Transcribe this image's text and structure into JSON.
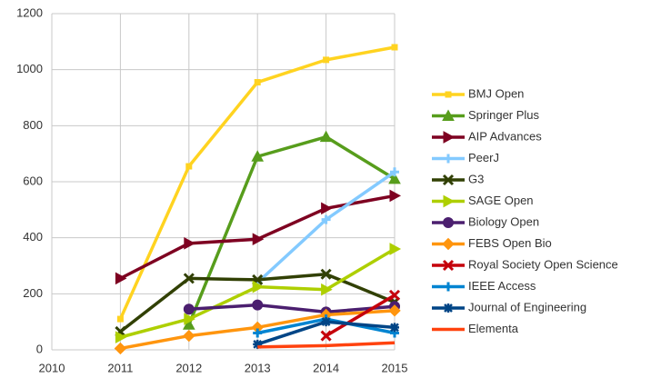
{
  "chart_data": {
    "type": "line",
    "x": [
      2010,
      2011,
      2012,
      2013,
      2014,
      2015
    ],
    "xlim": [
      2010,
      2015
    ],
    "xticks": [
      2010,
      2011,
      2012,
      2013,
      2014,
      2015
    ],
    "ylim": [
      0,
      1200
    ],
    "yticks": [
      0,
      200,
      400,
      600,
      800,
      1000,
      1200
    ],
    "grid": true,
    "legend": "right",
    "series": [
      {
        "name": "BMJ Open",
        "color": "#ffd320",
        "marker": "square",
        "values": [
          null,
          110,
          655,
          955,
          1035,
          1080
        ]
      },
      {
        "name": "Springer Plus",
        "color": "#579d1c",
        "marker": "triangle",
        "values": [
          null,
          null,
          90,
          690,
          760,
          610
        ]
      },
      {
        "name": "AIP Advances",
        "color": "#7e0021",
        "marker": "arrow",
        "values": [
          null,
          255,
          380,
          395,
          505,
          550
        ]
      },
      {
        "name": "PeerJ",
        "color": "#83caff",
        "marker": "plus",
        "values": [
          null,
          null,
          null,
          240,
          465,
          635
        ]
      },
      {
        "name": "G3",
        "color": "#314004",
        "marker": "x",
        "values": [
          null,
          65,
          255,
          250,
          270,
          170
        ]
      },
      {
        "name": "SAGE Open",
        "color": "#aecf00",
        "marker": "arrow",
        "values": [
          null,
          45,
          110,
          225,
          215,
          360
        ]
      },
      {
        "name": "Biology Open",
        "color": "#4b1f6f",
        "marker": "circle",
        "values": [
          null,
          null,
          145,
          160,
          135,
          155
        ]
      },
      {
        "name": "FEBS Open Bio",
        "color": "#ff950e",
        "marker": "diamond",
        "values": [
          null,
          5,
          50,
          80,
          125,
          140
        ]
      },
      {
        "name": "Royal Society Open Science",
        "color": "#c5000b",
        "marker": "x",
        "values": [
          null,
          null,
          null,
          null,
          50,
          195
        ]
      },
      {
        "name": "IEEE Access",
        "color": "#0084d1",
        "marker": "plus",
        "values": [
          null,
          null,
          null,
          60,
          110,
          60
        ]
      },
      {
        "name": "Journal of Engineering",
        "color": "#004586",
        "marker": "star",
        "values": [
          null,
          null,
          null,
          20,
          100,
          80
        ]
      },
      {
        "name": "Elementa",
        "color": "#ff420e",
        "marker": "none",
        "values": [
          null,
          null,
          null,
          10,
          15,
          25
        ]
      }
    ]
  }
}
